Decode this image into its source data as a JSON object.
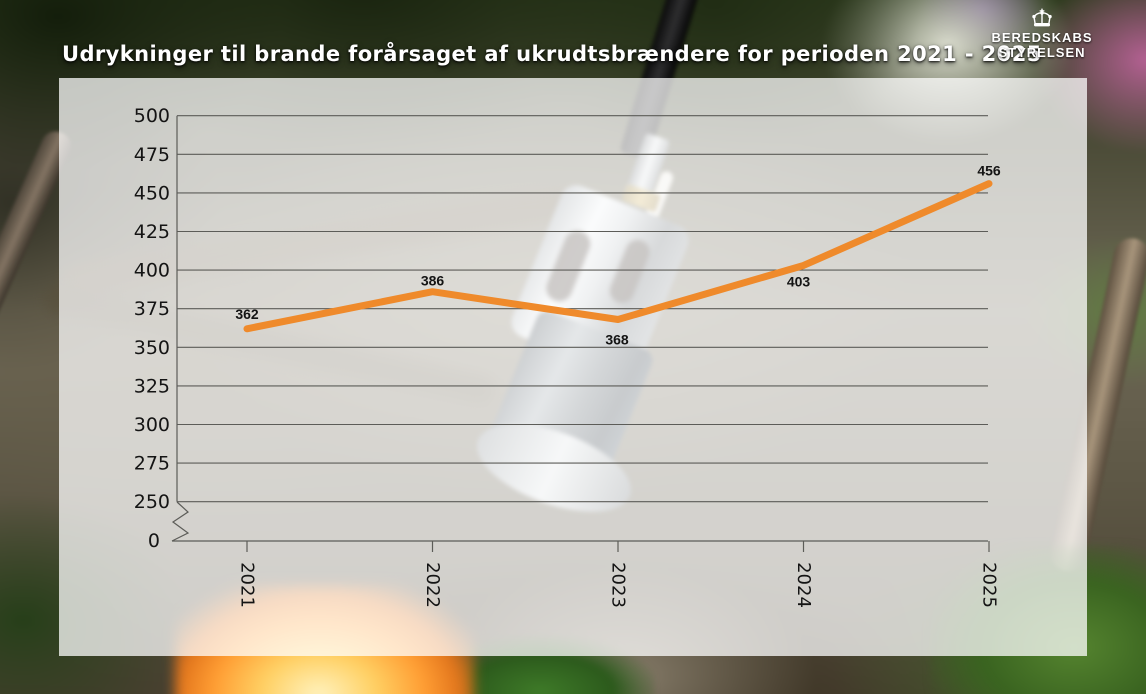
{
  "chart_data": {
    "type": "line",
    "title": "Udrykninger til brande forårsaget af ukrudtsbrændere for perioden 2021 - 2025",
    "categories": [
      "2021",
      "2022",
      "2023",
      "2024",
      "2025"
    ],
    "series": [
      {
        "name": "Udrykninger",
        "values": [
          362,
          386,
          368,
          403,
          456
        ]
      }
    ],
    "y_ticks": [
      0,
      250,
      275,
      300,
      325,
      350,
      375,
      400,
      425,
      450,
      475,
      500
    ],
    "axis_break": {
      "between": [
        0,
        250
      ]
    },
    "ylim": [
      0,
      500
    ],
    "grid": true,
    "legend": "none",
    "data_labels_shown": true,
    "colors": {
      "line": "#EF8A2B",
      "grid": "#5c5c58",
      "text": "#141414"
    }
  },
  "logo": {
    "line1": "BEREDSKABS",
    "line2": "STYRELSEN",
    "icon": "crown-icon"
  }
}
